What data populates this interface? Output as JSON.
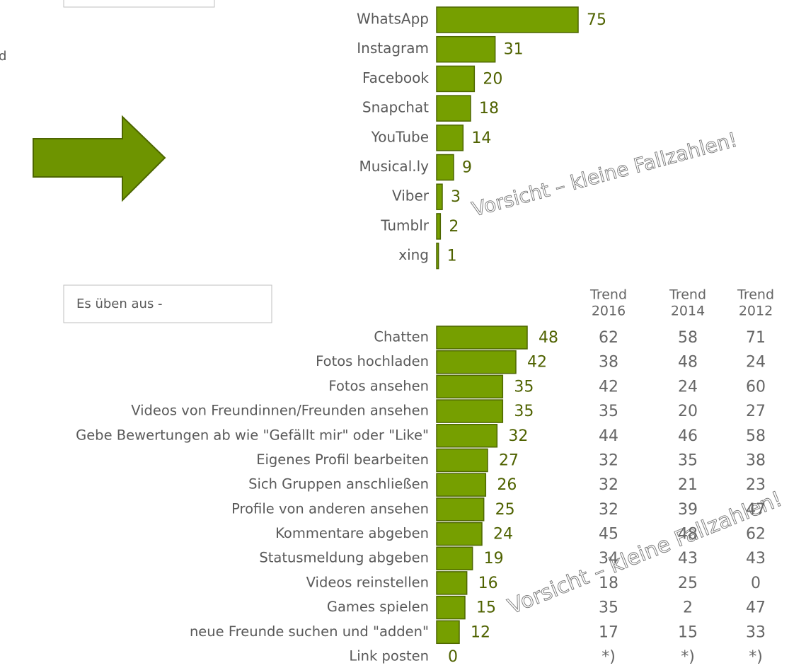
{
  "fragment": "d",
  "chart_data": [
    {
      "type": "bar",
      "orientation": "horizontal",
      "categories": [
        "WhatsApp",
        "Instagram",
        "Facebook",
        "Snapchat",
        "YouTube",
        "Musical.ly",
        "Viber",
        "Tumblr",
        "xing"
      ],
      "values": [
        75,
        31,
        20,
        18,
        14,
        9,
        3,
        2,
        1
      ],
      "color": "#769f00",
      "annotation": "Vorsicht – kleine Fallzahlen!"
    },
    {
      "type": "bar",
      "orientation": "horizontal",
      "title": "Es üben aus -",
      "categories": [
        "Chatten",
        "Fotos hochladen",
        "Fotos ansehen",
        "Videos von Freundinnen/Freunden ansehen",
        "Gebe Bewertungen ab wie \"Gefällt mir\" oder \"Like\"",
        "Eigenes Profil bearbeiten",
        "Sich Gruppen anschließen",
        "Profile von anderen ansehen",
        "Kommentare abgeben",
        "Statusmeldung abgeben",
        "Videos reinstellen",
        "Games spielen",
        "neue Freunde suchen und \"adden\"",
        "Link posten"
      ],
      "values": [
        48,
        42,
        35,
        35,
        32,
        27,
        26,
        25,
        24,
        19,
        16,
        15,
        12,
        0
      ],
      "color": "#769f00",
      "annotation": "Vorsicht – kleine Fallzahlen!"
    }
  ],
  "trend_table": {
    "columns": [
      [
        "Trend",
        "2016"
      ],
      [
        "Trend",
        "2014"
      ],
      [
        "Trend",
        "2012"
      ]
    ],
    "rows": [
      [
        62,
        58,
        71
      ],
      [
        38,
        48,
        24
      ],
      [
        42,
        24,
        60
      ],
      [
        35,
        20,
        27
      ],
      [
        44,
        46,
        58
      ],
      [
        32,
        35,
        38
      ],
      [
        32,
        21,
        23
      ],
      [
        32,
        39,
        47
      ],
      [
        45,
        48,
        62
      ],
      [
        34,
        43,
        43
      ],
      [
        18,
        25,
        0
      ],
      [
        35,
        2,
        47
      ],
      [
        17,
        15,
        33
      ],
      [
        "*)",
        "*)",
        "*)"
      ]
    ]
  }
}
